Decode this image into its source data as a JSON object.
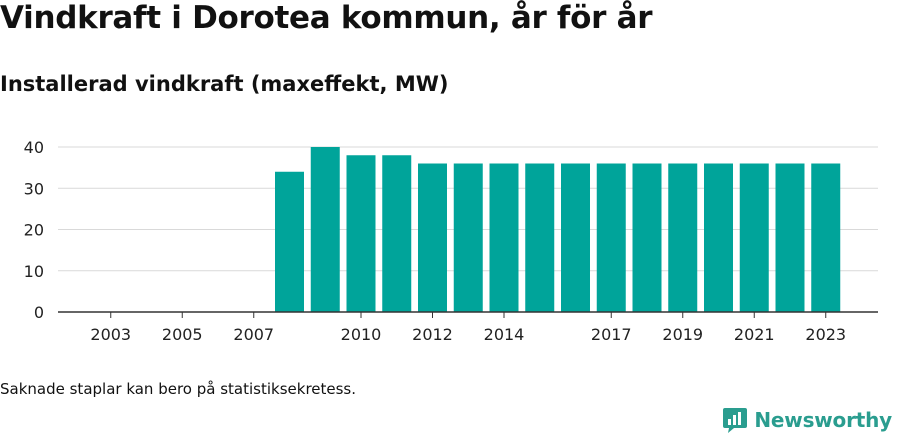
{
  "title": "Vindkraft i Dorotea kommun, år för år",
  "subtitle": "Installerad vindkraft (maxeffekt, MW)",
  "footnote": "Saknade staplar kan bero på statistiksekretess.",
  "brand": {
    "name": "Newsworthy",
    "icon": "newsworthy-logo-icon"
  },
  "colors": {
    "bar": "#00a49a",
    "grid": "#d9d9d9",
    "axis": "#333333"
  },
  "chart_data": {
    "type": "bar",
    "categories": [
      "2002",
      "2003",
      "2004",
      "2005",
      "2006",
      "2007",
      "2008",
      "2009",
      "2010",
      "2011",
      "2012",
      "2013",
      "2014",
      "2015",
      "2016",
      "2017",
      "2018",
      "2019",
      "2020",
      "2021",
      "2022",
      "2023"
    ],
    "values": [
      null,
      null,
      null,
      null,
      null,
      null,
      34,
      40,
      38,
      38,
      36,
      36,
      36,
      36,
      36,
      36,
      36,
      36,
      36,
      36,
      36,
      36
    ],
    "x_tick_labels": [
      "2003",
      "2005",
      "2007",
      "2010",
      "2012",
      "2014",
      "2017",
      "2019",
      "2021",
      "2023"
    ],
    "y_ticks": [
      0,
      10,
      20,
      30,
      40
    ],
    "ylim": [
      0,
      40
    ],
    "grid": true,
    "legend": "none"
  }
}
